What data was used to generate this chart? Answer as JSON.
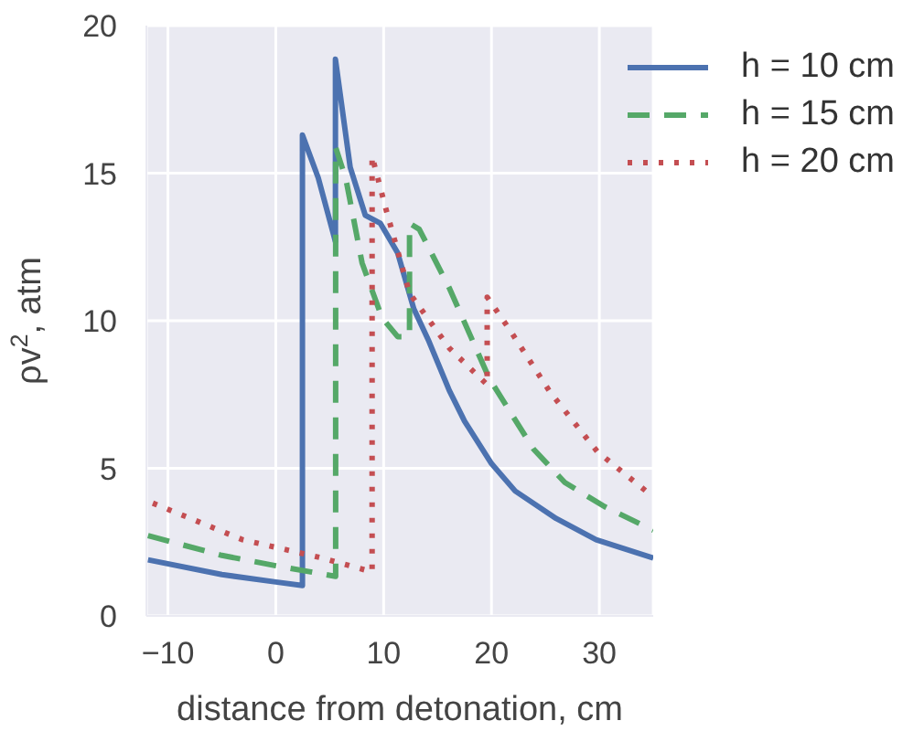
{
  "chart_data": {
    "type": "line",
    "xlabel": "distance from detonation, cm",
    "ylabel": "ρv$^{2}$, atm",
    "xlim": [
      -12,
      35
    ],
    "xticks": [
      -10,
      0,
      10,
      20,
      30
    ],
    "ylim": [
      0,
      20
    ],
    "yticks": [
      0,
      5,
      10,
      15,
      20
    ],
    "grid": true,
    "legend": "top right",
    "marker": "none",
    "series": [
      {
        "name": "h = 10 cm",
        "color": "#4c72b0",
        "line_style": "solid",
        "x": [
          -11.85,
          -5,
          0,
          2.47,
          2.47,
          3.94,
          5.53,
          5.53,
          6.9,
          8.3,
          9.7,
          11.3,
          12.8,
          14.2,
          16.1,
          17.5,
          20.0,
          22.2,
          26.0,
          29.7,
          35
        ],
        "values": [
          1.9,
          1.4,
          1.15,
          1.03,
          16.29,
          14.84,
          12.68,
          18.86,
          15.2,
          13.57,
          13.3,
          12.3,
          10.4,
          9.3,
          7.63,
          6.6,
          5.16,
          4.23,
          3.3,
          2.58,
          1.96
        ]
      },
      {
        "name": "h = 15 cm",
        "color": "#55a868",
        "line_style": "dashed",
        "x": [
          -11.85,
          -5,
          0,
          5.55,
          5.55,
          6.5,
          8.0,
          9.85,
          11.3,
          12.4,
          12.4,
          13.3,
          16.1,
          19.8,
          23.9,
          26.8,
          30.5,
          35
        ],
        "values": [
          2.72,
          2.05,
          1.7,
          1.34,
          15.87,
          14.8,
          11.96,
          10.1,
          9.46,
          9.46,
          13.3,
          13.1,
          11.1,
          8.04,
          5.65,
          4.52,
          3.7,
          2.9
        ]
      },
      {
        "name": "h = 20 cm",
        "color": "#c44e52",
        "line_style": "dotted",
        "x": [
          -11.4,
          -3.07,
          4.2,
          8.93,
          8.93,
          10.2,
          12.4,
          16.1,
          19.6,
          19.6,
          21.7,
          25.4,
          29.8,
          35
        ],
        "values": [
          3.82,
          2.58,
          1.97,
          1.49,
          15.57,
          13.8,
          10.93,
          9.07,
          7.83,
          10.8,
          9.69,
          7.6,
          5.57,
          4.03
        ]
      }
    ]
  }
}
